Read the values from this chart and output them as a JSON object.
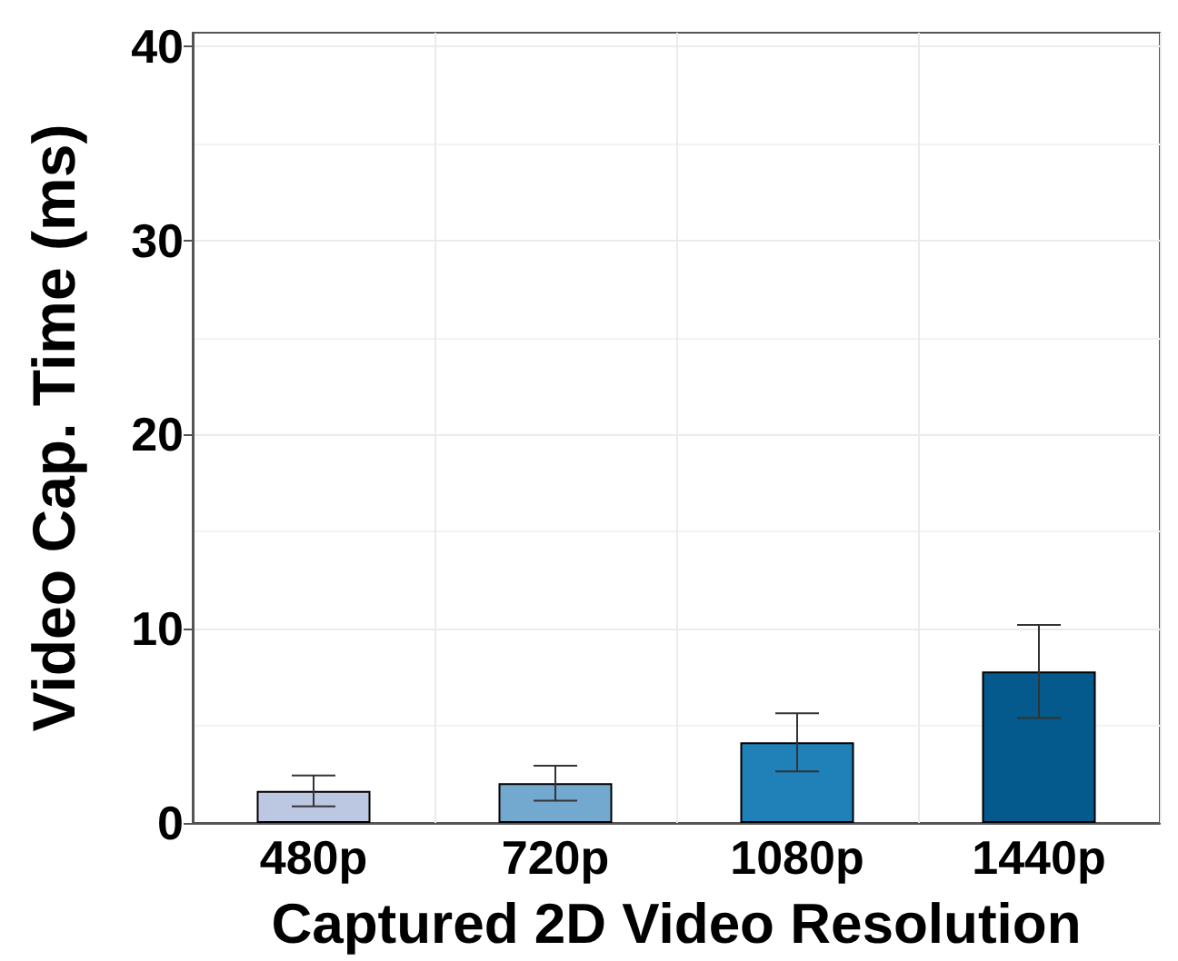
{
  "chart_data": {
    "type": "bar",
    "xlabel": "Captured 2D Video Resolution",
    "ylabel": "Video Cap. Time (ms)",
    "categories": [
      "480p",
      "720p",
      "1080p",
      "1440p"
    ],
    "values": [
      1.65,
      2.05,
      4.15,
      7.8
    ],
    "colors": [
      "#bcc8e2",
      "#74a9cf",
      "#2080b8",
      "#045a8d"
    ],
    "errors": [
      0.8,
      0.9,
      1.5,
      2.4
    ],
    "ylim": [
      0,
      40.7
    ],
    "yticks": [
      0,
      10,
      20,
      30,
      40
    ],
    "grid": true
  }
}
